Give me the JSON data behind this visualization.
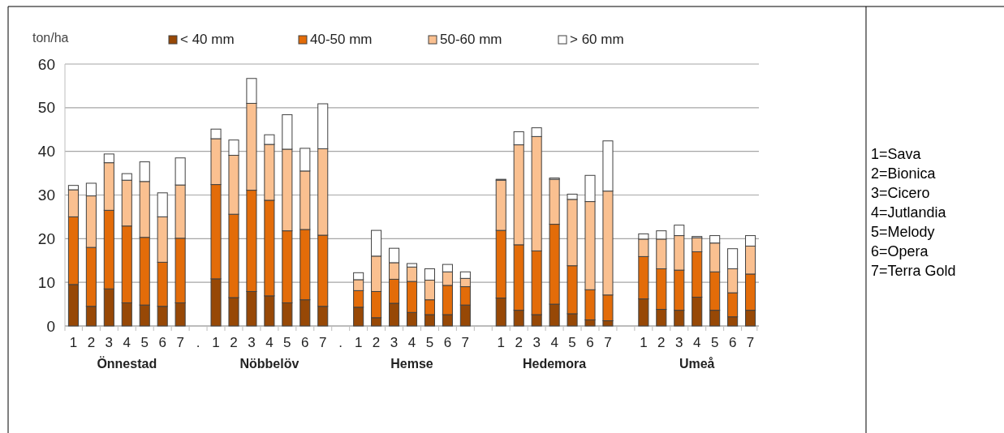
{
  "chart_data": {
    "type": "bar",
    "stacked": true,
    "ylabel": "ton/ha",
    "ylim": [
      0,
      60
    ],
    "yticks": [
      0,
      10,
      20,
      30,
      40,
      50,
      60
    ],
    "grid": "y",
    "legend": "top",
    "categories": [
      "1",
      "2",
      "3",
      "4",
      "5",
      "6",
      "7",
      ".",
      "1",
      "2",
      "3",
      "4",
      "5",
      "6",
      "7",
      ".",
      "1",
      "2",
      "3",
      "4",
      "5",
      "6",
      "7",
      null,
      "1",
      "2",
      "3",
      "4",
      "5",
      "6",
      "7",
      null,
      "1",
      "2",
      "3",
      "4",
      "5",
      "6",
      "7"
    ],
    "series": [
      {
        "name": "< 40 mm",
        "color": "#974806",
        "values": [
          9.5,
          4.5,
          8.5,
          5.3,
          4.8,
          4.5,
          5.3,
          null,
          10.8,
          6.5,
          7.9,
          6.9,
          5.3,
          6.0,
          4.5,
          null,
          4.3,
          1.9,
          5.2,
          3.1,
          2.6,
          2.6,
          4.8,
          null,
          6.4,
          3.6,
          2.6,
          5.0,
          2.8,
          1.4,
          1.2,
          null,
          6.2,
          3.8,
          3.6,
          6.6,
          3.6,
          2.1,
          3.6
        ]
      },
      {
        "name": "40-50 mm",
        "color": "#e36c09",
        "values": [
          15.5,
          13.5,
          18,
          17.6,
          15.5,
          10.1,
          14.8,
          null,
          21.6,
          19.1,
          23.2,
          21.9,
          16.5,
          16.1,
          16.3,
          null,
          3.8,
          6,
          5.5,
          7.1,
          3.4,
          6.7,
          4.2,
          null,
          15.5,
          15,
          14.6,
          18.3,
          11,
          6.9,
          5.9,
          null,
          9.7,
          9.3,
          9.2,
          10.4,
          8.8,
          5.5,
          8.3
        ]
      },
      {
        "name": "50-60 mm",
        "color": "#fac090",
        "values": [
          6.2,
          11.8,
          10.9,
          10.5,
          12.8,
          10.4,
          12.2,
          null,
          10.5,
          13.5,
          19.9,
          12.8,
          18.7,
          13.4,
          19.8,
          null,
          2.5,
          8.1,
          3.8,
          3.3,
          4.5,
          3.1,
          1.9,
          null,
          11.5,
          22.9,
          26.2,
          10.3,
          15.2,
          20.2,
          23.8,
          null,
          4,
          6.8,
          7.9,
          3.2,
          6.6,
          5.5,
          6.4
        ]
      },
      {
        "name": "> 60 mm",
        "color": "#ffffff",
        "values": [
          1,
          2.9,
          2,
          1.5,
          4.5,
          5.5,
          6.2,
          null,
          2.2,
          3.5,
          5.7,
          2.2,
          7.9,
          5.2,
          10.3,
          null,
          1.6,
          5.9,
          3.3,
          0.8,
          2.6,
          1.7,
          1.5,
          null,
          0.2,
          3,
          2,
          0.3,
          1.2,
          6,
          11.5,
          null,
          1.2,
          1.9,
          2.4,
          0.3,
          1.7,
          4.6,
          2.4
        ]
      }
    ],
    "annotations": [
      "Önnestad",
      "Nöbbelöv",
      "Hemse",
      "Hedemora",
      "Umeå",
      "1=Sava",
      "2=Bionica",
      "3=Cicero",
      "4=Jutlandia",
      "5=Melody",
      "6=Opera",
      "7=Terra Gold"
    ]
  }
}
